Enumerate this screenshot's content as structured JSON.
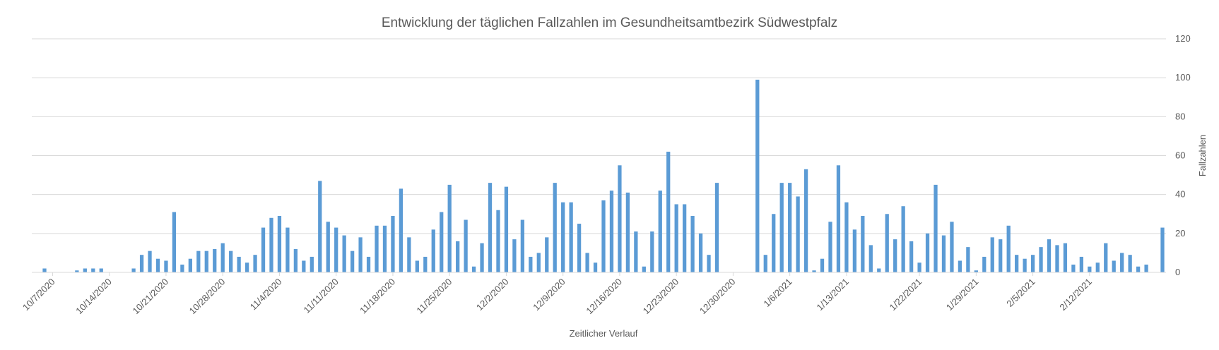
{
  "chart_data": {
    "type": "bar",
    "title": "Entwicklung der täglichen Fallzahlen im Gesundheitsamtbezirk Südwestpfalz",
    "xlabel": "Zeitlicher Verlauf",
    "ylabel": "Fallzahlen",
    "ylim": [
      0,
      120
    ],
    "y_ticks": [
      0,
      20,
      40,
      60,
      80,
      100,
      120
    ],
    "y_axis_side": "right",
    "grid": true,
    "x_ticks": [
      "10/7/2020",
      "10/14/2020",
      "10/21/2020",
      "10/28/2020",
      "11/4/2020",
      "11/11/2020",
      "11/18/2020",
      "11/25/2020",
      "12/2/2020",
      "12/9/2020",
      "12/16/2020",
      "12/23/2020",
      "12/30/2020",
      "1/6/2021",
      "1/13/2021",
      "1/22/2021",
      "1/29/2021",
      "2/5/2021",
      "2/12/2021"
    ],
    "bar_color": "#5B9BD5",
    "values": [
      2,
      0,
      0,
      0,
      1,
      2,
      2,
      2,
      0,
      0,
      0,
      2,
      9,
      11,
      7,
      6,
      31,
      4,
      7,
      11,
      11,
      12,
      15,
      11,
      8,
      5,
      9,
      23,
      28,
      29,
      23,
      12,
      6,
      8,
      47,
      26,
      23,
      19,
      11,
      18,
      8,
      24,
      24,
      29,
      43,
      18,
      6,
      8,
      22,
      31,
      45,
      16,
      27,
      3,
      15,
      46,
      32,
      44,
      17,
      27,
      8,
      10,
      18,
      46,
      36,
      36,
      25,
      10,
      5,
      37,
      42,
      55,
      41,
      21,
      3,
      21,
      42,
      62,
      35,
      35,
      29,
      20,
      9,
      46,
      0,
      0,
      0,
      0,
      99,
      9,
      30,
      46,
      46,
      39,
      53,
      1,
      7,
      26,
      55,
      36,
      22,
      29,
      14,
      2,
      30,
      17,
      34,
      16,
      5,
      20,
      45,
      19,
      26,
      6,
      13,
      1,
      8,
      18,
      17,
      24,
      9,
      7,
      9,
      13,
      17,
      14,
      15,
      4,
      8,
      3,
      5,
      15,
      6,
      10,
      9,
      3,
      4,
      0,
      23
    ]
  }
}
